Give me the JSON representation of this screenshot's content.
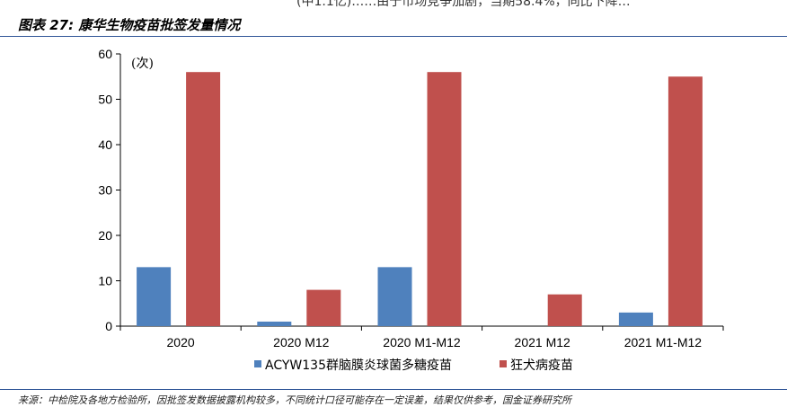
{
  "header": {
    "cut_text": "(中1.1亿)……由于市场竞争加剧，当期58.4%，同比下降…",
    "figure_title": "图表 27:  康华生物疫苗批签发量情况"
  },
  "footer": {
    "source": "来源：中检院及各地方检验所，因批签发数据披露机构较多，不同统计口径可能存在一定误差，结果仅供参考，国金证券研究所"
  },
  "colors": {
    "series1": "#4f81bd",
    "series2": "#c0504d",
    "rule": "#2f5597"
  },
  "chart_data": {
    "type": "bar",
    "title": "",
    "unit_label": "(次)",
    "xlabel": "",
    "ylabel": "",
    "ylim": [
      0,
      60
    ],
    "yticks": [
      0,
      10,
      20,
      30,
      40,
      50,
      60
    ],
    "categories": [
      "2020",
      "2020 M12",
      "2020 M1-M12",
      "2021 M12",
      "2021 M1-M12"
    ],
    "series": [
      {
        "name": "ACYW135群脑膜炎球菌多糖疫苗",
        "values": [
          13,
          1,
          13,
          0,
          3
        ]
      },
      {
        "name": "狂犬病疫苗",
        "values": [
          56,
          8,
          56,
          7,
          55
        ]
      }
    ],
    "legend": "bottom",
    "grid": false
  }
}
